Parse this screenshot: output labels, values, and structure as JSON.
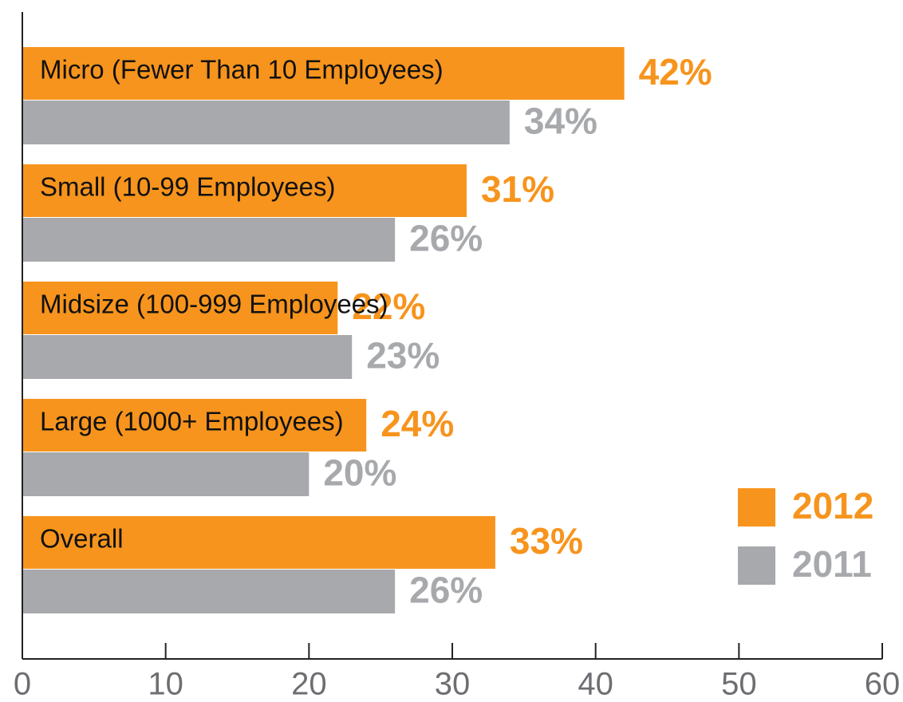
{
  "chart_data": {
    "type": "bar",
    "orientation": "horizontal",
    "categories": [
      "Micro (Fewer Than 10 Employees)",
      "Small (10-99 Employees)",
      "Midsize (100-999 Employees)",
      "Large (1000+ Employees)",
      "Overall"
    ],
    "series": [
      {
        "name": "2012",
        "color": "#f7941d",
        "values": [
          42,
          31,
          22,
          24,
          33
        ],
        "value_labels": [
          "42%",
          "31%",
          "22%",
          "24%",
          "33%"
        ]
      },
      {
        "name": "2011",
        "color": "#a7a9ac",
        "values": [
          34,
          26,
          23,
          20,
          26
        ],
        "value_labels": [
          "34%",
          "26%",
          "23%",
          "20%",
          "26%"
        ]
      }
    ],
    "xlim": [
      0,
      60
    ],
    "xticks": [
      0,
      10,
      20,
      30,
      40,
      50,
      60
    ],
    "legend": "right"
  }
}
